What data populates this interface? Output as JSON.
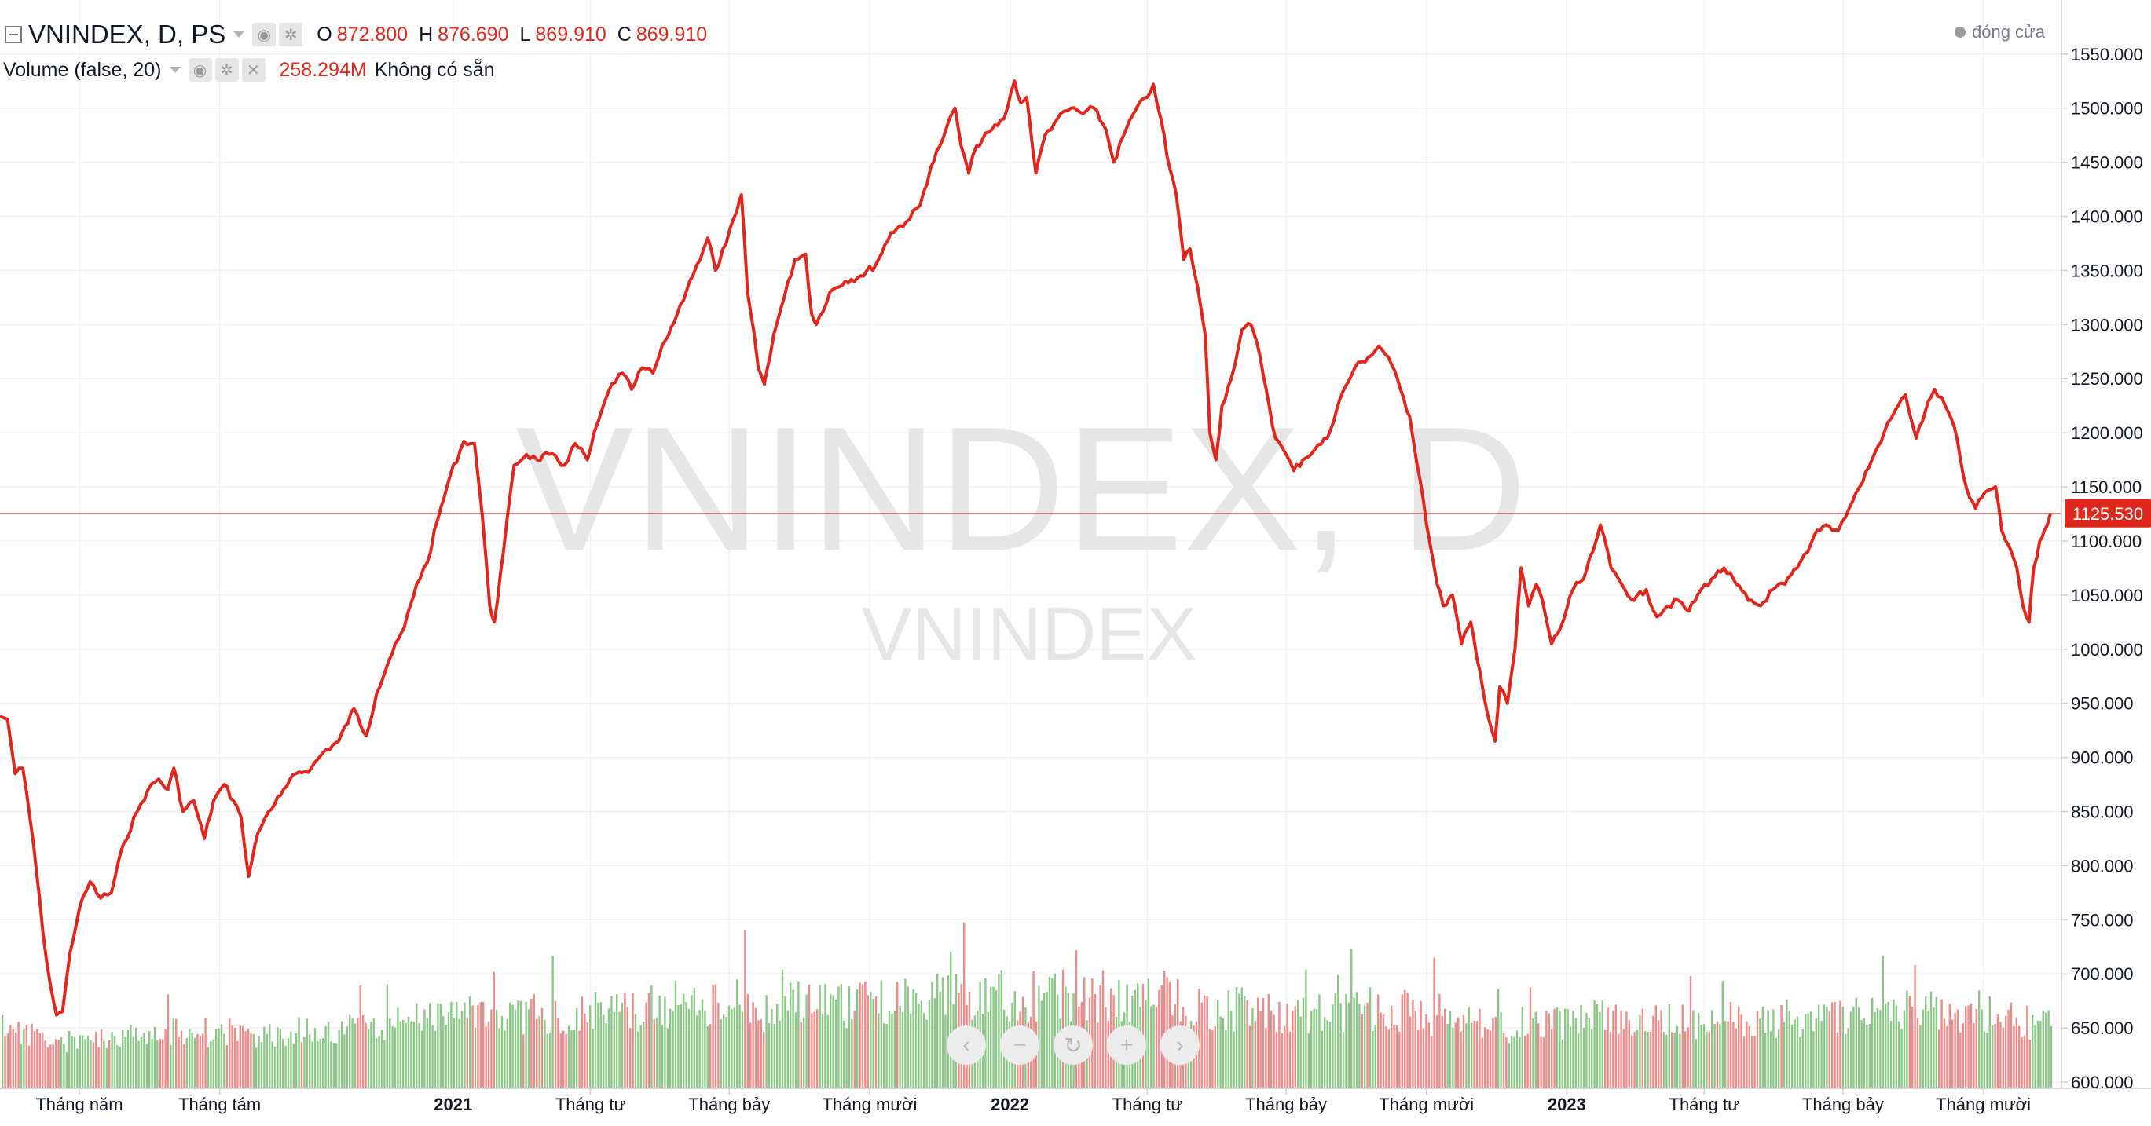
{
  "legend": {
    "symbol": "VNINDEX, D, PS",
    "ohlc": [
      {
        "key": "O",
        "value": "872.800"
      },
      {
        "key": "H",
        "value": "876.690"
      },
      {
        "key": "L",
        "value": "869.910"
      },
      {
        "key": "C",
        "value": "869.910"
      }
    ],
    "volume_title": "Volume (false, 20)",
    "volume_value": "258.294M",
    "volume_note": "Không có sẵn"
  },
  "market_status": "đóng cửa",
  "watermark": {
    "main": "VNINDEX, D",
    "sub": "VNINDEX"
  },
  "colors": {
    "price_line": "#e0271d",
    "vol_up": "#8cc788",
    "vol_down": "#ef8a8a",
    "last_price_bg": "#e0271d",
    "axis_text": "#131722",
    "grid_line": "#f2f2f2"
  },
  "nav_icons": [
    "chevron-left-icon",
    "zoom-out-icon",
    "reset-icon",
    "zoom-in-icon",
    "chevron-right-icon"
  ],
  "chart_data": {
    "type": "line",
    "title": "VNINDEX, D, PS",
    "xlabel": "",
    "ylabel": "",
    "ylim": [
      600,
      1560
    ],
    "yticks": [
      600,
      650,
      700,
      750,
      800,
      850,
      900,
      950,
      1000,
      1050,
      1100,
      1150,
      1200,
      1250,
      1300,
      1350,
      1400,
      1450,
      1500,
      1550
    ],
    "ytick_labels": [
      "600.000",
      "650.000",
      "700.000",
      "750.000",
      "800.000",
      "850.000",
      "900.000",
      "950.000",
      "1000.000",
      "1050.000",
      "1100.000",
      "1150.000",
      "1200.000",
      "1250.000",
      "1300.000",
      "1350.000",
      "1400.000",
      "1450.000",
      "1500.000",
      "1550.000"
    ],
    "x_range": [
      "2020-03-10",
      "2023-11-14"
    ],
    "xticks": [
      {
        "date": "2020-05-01",
        "label": "Tháng năm",
        "bold": false
      },
      {
        "date": "2020-08-01",
        "label": "Tháng tám",
        "bold": false
      },
      {
        "date": "2021-01-01",
        "label": "2021",
        "bold": true
      },
      {
        "date": "2021-04-01",
        "label": "Tháng tư",
        "bold": false
      },
      {
        "date": "2021-07-01",
        "label": "Tháng bảy",
        "bold": false
      },
      {
        "date": "2021-10-01",
        "label": "Tháng mười",
        "bold": false
      },
      {
        "date": "2022-01-01",
        "label": "2022",
        "bold": true
      },
      {
        "date": "2022-04-01",
        "label": "Tháng tư",
        "bold": false
      },
      {
        "date": "2022-07-01",
        "label": "Tháng bảy",
        "bold": false
      },
      {
        "date": "2022-10-01",
        "label": "Tháng mười",
        "bold": false
      },
      {
        "date": "2023-01-01",
        "label": "2023",
        "bold": true
      },
      {
        "date": "2023-04-01",
        "label": "Tháng tư",
        "bold": false
      },
      {
        "date": "2023-07-01",
        "label": "Tháng bảy",
        "bold": false
      },
      {
        "date": "2023-10-01",
        "label": "Tháng mười",
        "bold": false
      }
    ],
    "last_price": 1125.53,
    "last_price_label": "1125.530",
    "series": [
      {
        "values": [
          [
            "2020-03-10",
            938
          ],
          [
            "2020-03-15",
            935
          ],
          [
            "2020-03-20",
            885
          ],
          [
            "2020-03-25",
            890
          ],
          [
            "2020-04-01",
            820
          ],
          [
            "2020-04-07",
            740
          ],
          [
            "2020-04-12",
            690
          ],
          [
            "2020-04-16",
            662
          ],
          [
            "2020-04-20",
            665
          ],
          [
            "2020-04-25",
            720
          ],
          [
            "2020-05-01",
            760
          ],
          [
            "2020-05-08",
            785
          ],
          [
            "2020-05-15",
            770
          ],
          [
            "2020-05-22",
            775
          ],
          [
            "2020-05-30",
            820
          ],
          [
            "2020-06-08",
            850
          ],
          [
            "2020-06-15",
            870
          ],
          [
            "2020-06-22",
            880
          ],
          [
            "2020-06-28",
            870
          ],
          [
            "2020-07-02",
            890
          ],
          [
            "2020-07-08",
            850
          ],
          [
            "2020-07-15",
            860
          ],
          [
            "2020-07-22",
            825
          ],
          [
            "2020-07-28",
            860
          ],
          [
            "2020-08-04",
            875
          ],
          [
            "2020-08-10",
            860
          ],
          [
            "2020-08-15",
            845
          ],
          [
            "2020-08-20",
            790
          ],
          [
            "2020-08-26",
            830
          ],
          [
            "2020-09-02",
            850
          ],
          [
            "2020-09-10",
            865
          ],
          [
            "2020-09-20",
            885
          ],
          [
            "2020-09-30",
            890
          ],
          [
            "2020-10-08",
            905
          ],
          [
            "2020-10-18",
            915
          ],
          [
            "2020-10-28",
            945
          ],
          [
            "2020-11-05",
            920
          ],
          [
            "2020-11-12",
            960
          ],
          [
            "2020-11-20",
            990
          ],
          [
            "2020-11-30",
            1020
          ],
          [
            "2020-12-08",
            1060
          ],
          [
            "2020-12-15",
            1080
          ],
          [
            "2020-12-22",
            1120
          ],
          [
            "2020-12-30",
            1160
          ],
          [
            "2021-01-08",
            1192
          ],
          [
            "2021-01-15",
            1190
          ],
          [
            "2021-01-20",
            1125
          ],
          [
            "2021-01-25",
            1040
          ],
          [
            "2021-01-28",
            1025
          ],
          [
            "2021-02-03",
            1090
          ],
          [
            "2021-02-10",
            1170
          ],
          [
            "2021-02-18",
            1180
          ],
          [
            "2021-02-25",
            1175
          ],
          [
            "2021-03-05",
            1180
          ],
          [
            "2021-03-15",
            1170
          ],
          [
            "2021-03-22",
            1190
          ],
          [
            "2021-03-30",
            1175
          ],
          [
            "2021-04-06",
            1210
          ],
          [
            "2021-04-15",
            1245
          ],
          [
            "2021-04-22",
            1255
          ],
          [
            "2021-04-28",
            1240
          ],
          [
            "2021-05-05",
            1260
          ],
          [
            "2021-05-12",
            1255
          ],
          [
            "2021-05-20",
            1285
          ],
          [
            "2021-05-28",
            1310
          ],
          [
            "2021-06-05",
            1340
          ],
          [
            "2021-06-12",
            1360
          ],
          [
            "2021-06-17",
            1380
          ],
          [
            "2021-06-22",
            1350
          ],
          [
            "2021-06-29",
            1375
          ],
          [
            "2021-07-06",
            1405
          ],
          [
            "2021-07-09",
            1420
          ],
          [
            "2021-07-13",
            1330
          ],
          [
            "2021-07-17",
            1295
          ],
          [
            "2021-07-20",
            1260
          ],
          [
            "2021-07-24",
            1245
          ],
          [
            "2021-07-30",
            1290
          ],
          [
            "2021-08-06",
            1325
          ],
          [
            "2021-08-13",
            1360
          ],
          [
            "2021-08-20",
            1365
          ],
          [
            "2021-08-24",
            1310
          ],
          [
            "2021-08-27",
            1300
          ],
          [
            "2021-09-05",
            1330
          ],
          [
            "2021-09-15",
            1340
          ],
          [
            "2021-09-25",
            1345
          ],
          [
            "2021-10-05",
            1355
          ],
          [
            "2021-10-15",
            1385
          ],
          [
            "2021-10-25",
            1395
          ],
          [
            "2021-11-03",
            1410
          ],
          [
            "2021-11-10",
            1445
          ],
          [
            "2021-11-16",
            1465
          ],
          [
            "2021-11-20",
            1480
          ],
          [
            "2021-11-26",
            1500
          ],
          [
            "2021-11-30",
            1465
          ],
          [
            "2021-12-05",
            1440
          ],
          [
            "2021-12-10",
            1465
          ],
          [
            "2021-12-20",
            1480
          ],
          [
            "2021-12-28",
            1490
          ],
          [
            "2022-01-04",
            1525
          ],
          [
            "2022-01-08",
            1505
          ],
          [
            "2022-01-12",
            1510
          ],
          [
            "2022-01-18",
            1440
          ],
          [
            "2022-01-24",
            1475
          ],
          [
            "2022-02-01",
            1490
          ],
          [
            "2022-02-10",
            1500
          ],
          [
            "2022-02-18",
            1495
          ],
          [
            "2022-02-25",
            1500
          ],
          [
            "2022-03-05",
            1480
          ],
          [
            "2022-03-10",
            1450
          ],
          [
            "2022-03-18",
            1480
          ],
          [
            "2022-03-25",
            1500
          ],
          [
            "2022-04-01",
            1510
          ],
          [
            "2022-04-05",
            1522
          ],
          [
            "2022-04-10",
            1490
          ],
          [
            "2022-04-14",
            1455
          ],
          [
            "2022-04-20",
            1420
          ],
          [
            "2022-04-25",
            1360
          ],
          [
            "2022-04-29",
            1370
          ],
          [
            "2022-05-04",
            1335
          ],
          [
            "2022-05-09",
            1290
          ],
          [
            "2022-05-12",
            1200
          ],
          [
            "2022-05-16",
            1175
          ],
          [
            "2022-05-20",
            1225
          ],
          [
            "2022-05-26",
            1250
          ],
          [
            "2022-06-02",
            1295
          ],
          [
            "2022-06-08",
            1300
          ],
          [
            "2022-06-14",
            1270
          ],
          [
            "2022-06-18",
            1240
          ],
          [
            "2022-06-24",
            1195
          ],
          [
            "2022-07-01",
            1180
          ],
          [
            "2022-07-06",
            1165
          ],
          [
            "2022-07-12",
            1175
          ],
          [
            "2022-07-20",
            1185
          ],
          [
            "2022-07-28",
            1195
          ],
          [
            "2022-08-05",
            1230
          ],
          [
            "2022-08-15",
            1260
          ],
          [
            "2022-08-24",
            1270
          ],
          [
            "2022-08-31",
            1280
          ],
          [
            "2022-09-06",
            1270
          ],
          [
            "2022-09-14",
            1240
          ],
          [
            "2022-09-20",
            1215
          ],
          [
            "2022-09-27",
            1155
          ],
          [
            "2022-10-03",
            1100
          ],
          [
            "2022-10-08",
            1060
          ],
          [
            "2022-10-12",
            1040
          ],
          [
            "2022-10-18",
            1050
          ],
          [
            "2022-10-24",
            1005
          ],
          [
            "2022-10-30",
            1025
          ],
          [
            "2022-11-05",
            980
          ],
          [
            "2022-11-10",
            940
          ],
          [
            "2022-11-15",
            915
          ],
          [
            "2022-11-18",
            965
          ],
          [
            "2022-11-23",
            950
          ],
          [
            "2022-11-28",
            1000
          ],
          [
            "2022-12-02",
            1075
          ],
          [
            "2022-12-07",
            1040
          ],
          [
            "2022-12-12",
            1060
          ],
          [
            "2022-12-16",
            1045
          ],
          [
            "2022-12-22",
            1005
          ],
          [
            "2022-12-28",
            1020
          ],
          [
            "2023-01-05",
            1055
          ],
          [
            "2023-01-12",
            1065
          ],
          [
            "2023-01-18",
            1090
          ],
          [
            "2023-01-23",
            1115
          ],
          [
            "2023-01-30",
            1075
          ],
          [
            "2023-02-06",
            1060
          ],
          [
            "2023-02-14",
            1045
          ],
          [
            "2023-02-22",
            1055
          ],
          [
            "2023-03-01",
            1030
          ],
          [
            "2023-03-08",
            1040
          ],
          [
            "2023-03-15",
            1045
          ],
          [
            "2023-03-22",
            1035
          ],
          [
            "2023-03-30",
            1055
          ],
          [
            "2023-04-06",
            1065
          ],
          [
            "2023-04-14",
            1075
          ],
          [
            "2023-04-22",
            1060
          ],
          [
            "2023-04-30",
            1045
          ],
          [
            "2023-05-08",
            1040
          ],
          [
            "2023-05-16",
            1055
          ],
          [
            "2023-05-24",
            1060
          ],
          [
            "2023-06-01",
            1075
          ],
          [
            "2023-06-08",
            1090
          ],
          [
            "2023-06-14",
            1110
          ],
          [
            "2023-06-20",
            1115
          ],
          [
            "2023-06-28",
            1110
          ],
          [
            "2023-07-05",
            1130
          ],
          [
            "2023-07-12",
            1150
          ],
          [
            "2023-07-20",
            1175
          ],
          [
            "2023-07-28",
            1200
          ],
          [
            "2023-08-04",
            1220
          ],
          [
            "2023-08-11",
            1235
          ],
          [
            "2023-08-18",
            1195
          ],
          [
            "2023-08-24",
            1220
          ],
          [
            "2023-08-30",
            1240
          ],
          [
            "2023-09-06",
            1225
          ],
          [
            "2023-09-12",
            1205
          ],
          [
            "2023-09-18",
            1160
          ],
          [
            "2023-09-22",
            1140
          ],
          [
            "2023-09-26",
            1130
          ],
          [
            "2023-10-02",
            1145
          ],
          [
            "2023-10-09",
            1150
          ],
          [
            "2023-10-13",
            1110
          ],
          [
            "2023-10-18",
            1095
          ],
          [
            "2023-10-23",
            1075
          ],
          [
            "2023-10-27",
            1040
          ],
          [
            "2023-10-31",
            1025
          ],
          [
            "2023-11-03",
            1075
          ],
          [
            "2023-11-07",
            1100
          ],
          [
            "2023-11-10",
            1110
          ],
          [
            "2023-11-14",
            1125.53
          ]
        ]
      }
    ]
  }
}
